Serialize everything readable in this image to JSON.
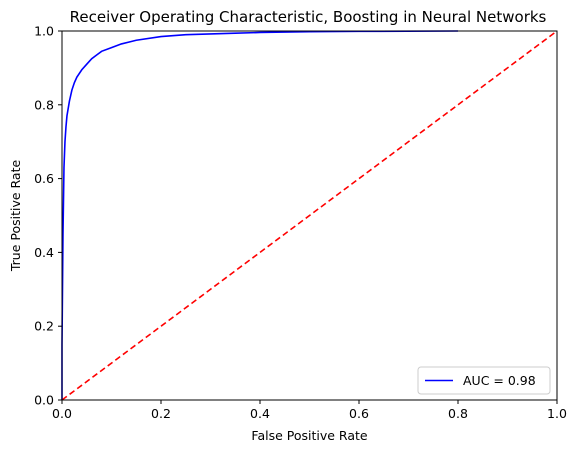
{
  "chart_data": {
    "type": "line",
    "title": "Receiver Operating Characteristic, Boosting in Neural Networks",
    "xlabel": "False Positive Rate",
    "ylabel": "True Positive Rate",
    "xlim": [
      0.0,
      1.0
    ],
    "ylim": [
      0.0,
      1.0
    ],
    "x_ticks": [
      "0.0",
      "0.2",
      "0.4",
      "0.6",
      "0.8",
      "1.0"
    ],
    "y_ticks": [
      "0.0",
      "0.2",
      "0.4",
      "0.6",
      "0.8",
      "1.0"
    ],
    "grid": false,
    "legend_position": "lower-right",
    "series": [
      {
        "name": "AUC = 0.98",
        "color": "#0000ff",
        "style": "solid",
        "x": [
          0.0,
          0.0,
          0.002,
          0.004,
          0.006,
          0.008,
          0.01,
          0.015,
          0.02,
          0.025,
          0.03,
          0.04,
          0.05,
          0.06,
          0.07,
          0.08,
          0.1,
          0.12,
          0.15,
          0.2,
          0.25,
          0.3,
          0.35,
          0.4,
          0.5,
          0.6,
          0.8
        ],
        "y": [
          0.0,
          0.15,
          0.45,
          0.63,
          0.7,
          0.74,
          0.77,
          0.81,
          0.84,
          0.86,
          0.875,
          0.895,
          0.91,
          0.925,
          0.935,
          0.945,
          0.955,
          0.965,
          0.975,
          0.985,
          0.99,
          0.992,
          0.994,
          0.996,
          0.998,
          0.999,
          1.0
        ]
      },
      {
        "name": "",
        "color": "#ff0000",
        "style": "dashed",
        "x": [
          0.0,
          1.0
        ],
        "y": [
          0.0,
          1.0
        ]
      }
    ]
  }
}
